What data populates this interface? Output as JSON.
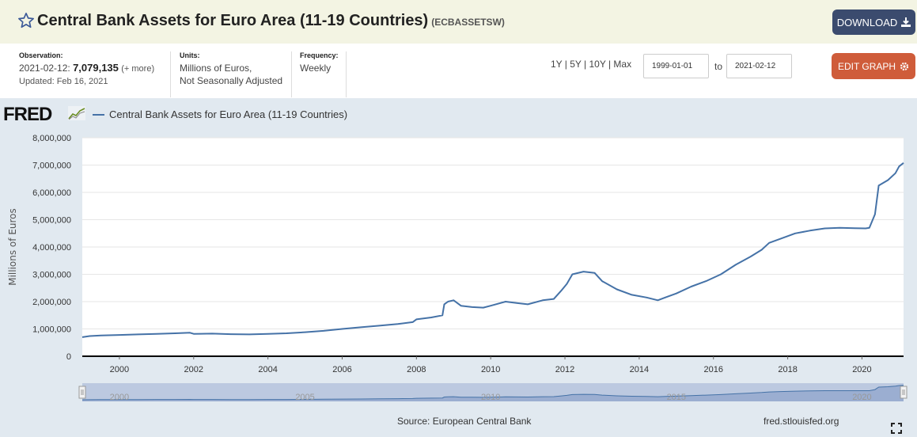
{
  "header": {
    "title": "Central Bank Assets for Euro Area (11-19 Countries)",
    "series_id": "(ECBASSETSW)",
    "download_label": "DOWNLOAD"
  },
  "meta": {
    "observation_label": "Observation:",
    "observation_date": "2021-02-12:",
    "observation_value": "7,079,135",
    "observation_more": "(+ more)",
    "updated": "Updated: Feb 16, 2021",
    "units_label": "Units:",
    "units_line1": "Millions of Euros,",
    "units_line2": "Not Seasonally Adjusted",
    "frequency_label": "Frequency:",
    "frequency_value": "Weekly"
  },
  "controls": {
    "ranges": "1Y | 5Y | 10Y | Max",
    "start_date": "1999-01-01",
    "to_label": "to",
    "end_date": "2021-02-12",
    "edit_label": "EDIT GRAPH"
  },
  "logo": "FRED",
  "footer": {
    "source": "Source: European Central Bank",
    "url": "fred.stlouisfed.org"
  },
  "colors": {
    "series": "#4572a7",
    "header_bg": "#f3f4e3",
    "download_bg": "#3b4b6e",
    "edit_bg": "#cf5c3a",
    "chart_bg": "#e1e9f0"
  },
  "icons": {
    "star": "star-icon",
    "download": "download-icon",
    "gear": "gear-icon",
    "fullscreen": "fullscreen-icon"
  },
  "chart_data": {
    "type": "line",
    "title": "",
    "xlabel": "",
    "ylabel": "Millions of Euros",
    "xlim": [
      1999.0,
      2021.12
    ],
    "ylim": [
      0,
      8000000
    ],
    "grid": true,
    "legend_position": "top-left",
    "yticks": [
      "0",
      "1,000,000",
      "2,000,000",
      "3,000,000",
      "4,000,000",
      "5,000,000",
      "6,000,000",
      "7,000,000",
      "8,000,000"
    ],
    "xticks": [
      "2000",
      "2002",
      "2004",
      "2006",
      "2008",
      "2010",
      "2012",
      "2014",
      "2016",
      "2018",
      "2020"
    ],
    "navigator_ticks": [
      "2000",
      "2005",
      "2010",
      "2015",
      "2020"
    ],
    "series": [
      {
        "name": "Central Bank Assets for Euro Area (11-19 Countries)",
        "x": [
          1999.0,
          1999.2,
          1999.5,
          2000.0,
          2000.5,
          2001.0,
          2001.5,
          2001.9,
          2002.0,
          2002.5,
          2003.0,
          2003.5,
          2004.0,
          2004.5,
          2005.0,
          2005.5,
          2006.0,
          2006.5,
          2007.0,
          2007.5,
          2007.9,
          2008.0,
          2008.4,
          2008.7,
          2008.75,
          2008.85,
          2009.0,
          2009.2,
          2009.5,
          2009.8,
          2010.0,
          2010.4,
          2010.7,
          2011.0,
          2011.4,
          2011.7,
          2011.9,
          2012.05,
          2012.2,
          2012.5,
          2012.8,
          2013.0,
          2013.4,
          2013.8,
          2014.2,
          2014.5,
          2014.7,
          2015.0,
          2015.4,
          2015.8,
          2016.2,
          2016.6,
          2017.0,
          2017.3,
          2017.5,
          2017.8,
          2018.2,
          2018.6,
          2019.0,
          2019.4,
          2019.8,
          2020.1,
          2020.2,
          2020.35,
          2020.45,
          2020.7,
          2020.9,
          2021.0,
          2021.12
        ],
        "y": [
          700000,
          740000,
          760000,
          780000,
          800000,
          820000,
          840000,
          860000,
          820000,
          830000,
          810000,
          800000,
          820000,
          840000,
          880000,
          930000,
          1000000,
          1060000,
          1120000,
          1180000,
          1250000,
          1350000,
          1420000,
          1500000,
          1900000,
          2000000,
          2050000,
          1850000,
          1800000,
          1780000,
          1850000,
          2000000,
          1950000,
          1900000,
          2050000,
          2100000,
          2400000,
          2650000,
          3000000,
          3100000,
          3050000,
          2750000,
          2450000,
          2250000,
          2150000,
          2050000,
          2150000,
          2300000,
          2550000,
          2750000,
          3000000,
          3350000,
          3650000,
          3900000,
          4150000,
          4300000,
          4500000,
          4600000,
          4680000,
          4700000,
          4690000,
          4680000,
          4700000,
          5200000,
          6250000,
          6450000,
          6700000,
          6950000,
          7079135
        ]
      }
    ]
  }
}
